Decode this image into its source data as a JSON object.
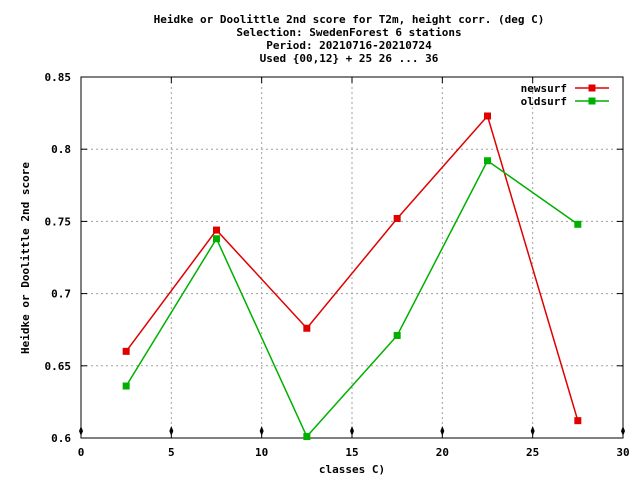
{
  "chart_data": {
    "type": "line",
    "title_lines": [
      "Heidke or Doolittle 2nd score  for T2m, height corr. (deg C)",
      "Selection: SwedenForest      6 stations",
      "Period: 20210716-20210724",
      "Used {00,12} + 25 26 ... 36"
    ],
    "xlabel": "classes C)",
    "ylabel": "Heidke or Doolittle 2nd score",
    "xlim": [
      0,
      30
    ],
    "ylim": [
      0.6,
      0.85
    ],
    "x_ticks": [
      0,
      5,
      10,
      15,
      20,
      25,
      30
    ],
    "y_ticks": [
      0.6,
      0.65,
      0.7,
      0.75,
      0.8,
      0.85
    ],
    "x_tick_labels": [
      "0",
      "5",
      "10",
      "15",
      "20",
      "25",
      "30"
    ],
    "y_tick_labels": [
      "0.6",
      "0.65",
      "0.7",
      "0.75",
      "0.8",
      "0.85"
    ],
    "grid": true,
    "legend_position": "top-right",
    "boundary_markers_x": [
      0,
      5,
      10,
      15,
      20,
      25,
      30
    ],
    "series": [
      {
        "name": "newsurf",
        "color": "#e00000",
        "x": [
          2.5,
          7.5,
          12.5,
          17.5,
          22.5,
          27.5
        ],
        "y": [
          0.66,
          0.744,
          0.676,
          0.752,
          0.823,
          0.612
        ]
      },
      {
        "name": "oldsurf",
        "color": "#00b000",
        "x": [
          2.5,
          7.5,
          12.5,
          17.5,
          22.5,
          27.5
        ],
        "y": [
          0.636,
          0.738,
          0.601,
          0.671,
          0.792,
          0.748
        ]
      }
    ]
  }
}
